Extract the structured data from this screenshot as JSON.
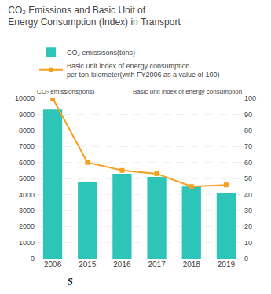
{
  "chart_data": {
    "type": "bar",
    "title": "CO₂ Emissions and Basic Unit of\nEnergy Consumption (Index) in Transport",
    "categories": [
      "2006",
      "2015",
      "2016",
      "2017",
      "2018",
      "2019"
    ],
    "ylabel": "CO₂ emissions(tons)",
    "y2label": "Basic unit index of energy consumption",
    "series": [
      {
        "name": "CO₂ emissisons(tons)",
        "type": "bar",
        "color": "#2dc5b8",
        "values": [
          9300,
          4800,
          5300,
          5100,
          4500,
          4100
        ]
      },
      {
        "name": "Basic unit index of energy consumption\nper ton-kilometer(with FY2006 as a value of 100)",
        "type": "line",
        "axis": "y2",
        "color": "#f5a020",
        "marker": "square",
        "values": [
          100,
          60,
          55,
          53,
          45,
          46
        ]
      }
    ],
    "ylim": [
      0,
      10000
    ],
    "yticks": [
      0,
      1000,
      2000,
      3000,
      4000,
      5000,
      6000,
      7000,
      8000,
      9000,
      10000
    ],
    "y2lim": [
      0,
      100
    ],
    "y2ticks": [
      0,
      10,
      20,
      30,
      40,
      50,
      60,
      70,
      80,
      90,
      100
    ],
    "grid": true,
    "legend": "top left",
    "annotations": [
      {
        "text": "S"
      }
    ]
  }
}
